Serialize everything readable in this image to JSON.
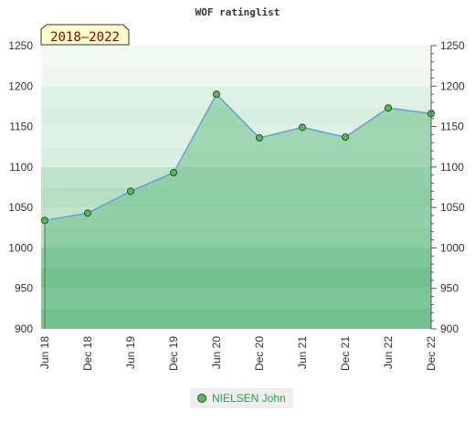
{
  "chart_data": {
    "type": "area",
    "title": "WOF ratinglist",
    "badge": "2018–2022",
    "categories": [
      "Jun 18",
      "Dec 18",
      "Jun 19",
      "Dec 19",
      "Jun 20",
      "Dec 20",
      "Jun 21",
      "Dec 21",
      "Jun 22",
      "Dec 22"
    ],
    "series": [
      {
        "name": "NIELSEN John",
        "values": [
          1034,
          1043,
          1070,
          1093,
          1190,
          1136,
          1149,
          1137,
          1173,
          1166
        ]
      }
    ],
    "ylim": [
      900,
      1250
    ],
    "yticks": [
      900,
      950,
      1000,
      1050,
      1100,
      1150,
      1200,
      1250
    ],
    "y_axis_both_sides": true,
    "legend_position": "bottom-center",
    "grid": true,
    "colors": {
      "line": "#6a9fd4",
      "area": "#6cc08a",
      "marker": "#5cb85c",
      "band_dark": "#7cc494",
      "band_mid": "#b5dec3",
      "band_light": "#d9efe0",
      "band_pale": "#eef8f1",
      "badge_bg": "#ffffcc",
      "badge_text": "#8b0000"
    }
  }
}
